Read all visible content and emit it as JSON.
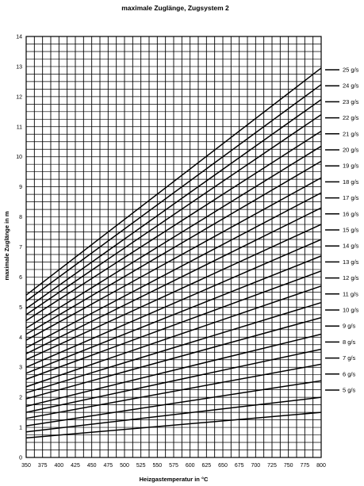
{
  "chart_data": {
    "type": "line",
    "title": "maximale Zuglänge, Zugsystem 2",
    "xlabel": "Heizgastemperatur in °C",
    "ylabel": "maximale Zuglänge in m",
    "xlim": [
      350,
      800
    ],
    "ylim": [
      0,
      14
    ],
    "x_ticks": [
      350,
      375,
      400,
      425,
      450,
      475,
      500,
      525,
      550,
      575,
      600,
      625,
      650,
      675,
      700,
      725,
      750,
      775,
      800
    ],
    "y_ticks": [
      0,
      1,
      2,
      3,
      4,
      5,
      6,
      7,
      8,
      9,
      10,
      11,
      12,
      13,
      14
    ],
    "x_minor_step": 12.5,
    "y_minor_step": 0.25,
    "grid": true,
    "legend_position": "right",
    "series": [
      {
        "name": "25 g/s",
        "values": [
          5.4,
          12.95
        ]
      },
      {
        "name": "24 g/s",
        "values": [
          5.2,
          12.4
        ]
      },
      {
        "name": "23 g/s",
        "values": [
          4.95,
          11.9
        ]
      },
      {
        "name": "22 g/s",
        "values": [
          4.75,
          11.4
        ]
      },
      {
        "name": "21 g/s",
        "values": [
          4.55,
          10.85
        ]
      },
      {
        "name": "20 g/s",
        "values": [
          4.3,
          10.35
        ]
      },
      {
        "name": "19 g/s",
        "values": [
          4.1,
          9.85
        ]
      },
      {
        "name": "18 g/s",
        "values": [
          3.9,
          9.3
        ]
      },
      {
        "name": "17 g/s",
        "values": [
          3.65,
          8.8
        ]
      },
      {
        "name": "16 g/s",
        "values": [
          3.45,
          8.3
        ]
      },
      {
        "name": "15 g/s",
        "values": [
          3.25,
          7.75
        ]
      },
      {
        "name": "14 g/s",
        "values": [
          3.0,
          7.25
        ]
      },
      {
        "name": "13 g/s",
        "values": [
          2.8,
          6.7
        ]
      },
      {
        "name": "12 g/s",
        "values": [
          2.6,
          6.2
        ]
      },
      {
        "name": "11 g/s",
        "values": [
          2.35,
          5.7
        ]
      },
      {
        "name": "10 g/s",
        "values": [
          2.15,
          5.15
        ]
      },
      {
        "name": "9 g/s",
        "values": [
          1.95,
          4.65
        ]
      },
      {
        "name": "8 g/s",
        "values": [
          1.7,
          4.1
        ]
      },
      {
        "name": "7 g/s",
        "values": [
          1.5,
          3.6
        ]
      },
      {
        "name": "6 g/s",
        "values": [
          1.3,
          3.1
        ]
      },
      {
        "name": "5 g/s",
        "values": [
          1.05,
          2.55
        ]
      },
      {
        "name": "",
        "values": [
          0.85,
          2.0
        ]
      },
      {
        "name": "",
        "values": [
          0.65,
          1.5
        ]
      }
    ],
    "x": [
      350,
      800
    ]
  }
}
